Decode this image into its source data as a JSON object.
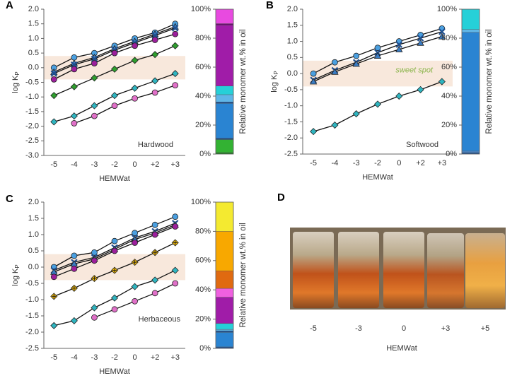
{
  "chart_data": [
    {
      "type": "line",
      "panel_label": "A",
      "annotation": "Hardwood",
      "x_label": "HEMWat",
      "y_label": "log K",
      "y_label_sub": "P",
      "categories": [
        "-5",
        "-4",
        "-3",
        "-2",
        "0",
        "+2",
        "+3"
      ],
      "ylim": [
        -3,
        2
      ],
      "yticks": [
        {
          "value": -3,
          "label": "-3.0"
        },
        {
          "value": -2.5,
          "label": "-2.5"
        },
        {
          "value": -2,
          "label": "-2.0"
        },
        {
          "value": -1.5,
          "label": "-1.5"
        },
        {
          "value": -1,
          "label": "-1.0"
        },
        {
          "value": -0.5,
          "label": "-0.5"
        },
        {
          "value": 0,
          "label": "0.0"
        },
        {
          "value": 0.5,
          "label": "0.5"
        },
        {
          "value": 1,
          "label": "1.0"
        },
        {
          "value": 1.5,
          "label": "1.5"
        },
        {
          "value": 2,
          "label": "2.0"
        }
      ],
      "shaded_range": [
        -0.4,
        0.4
      ],
      "shade_color": "#f8e8dc",
      "series": [
        {
          "marker": "circle",
          "color": "#4a9fe0",
          "values": [
            0.0,
            0.35,
            0.5,
            0.75,
            1.0,
            1.2,
            1.5
          ]
        },
        {
          "marker": "triangle",
          "color": "#3a7cc4",
          "values": [
            -0.15,
            0.15,
            0.35,
            0.65,
            0.9,
            1.15,
            1.4
          ]
        },
        {
          "marker": "x",
          "color": "#1f4f8f",
          "values": [
            -0.2,
            0.1,
            0.3,
            0.6,
            0.85,
            1.1,
            1.35
          ]
        },
        {
          "marker": "circle",
          "color": "#9c1f9c",
          "values": [
            -0.4,
            -0.05,
            0.15,
            0.5,
            0.75,
            0.95,
            1.15
          ]
        },
        {
          "marker": "diamond",
          "color": "#2e9e2e",
          "values": [
            -0.95,
            -0.65,
            -0.35,
            -0.05,
            0.25,
            0.45,
            0.75
          ]
        },
        {
          "marker": "diamond",
          "color": "#2fb5c0",
          "values": [
            -1.85,
            -1.65,
            -1.3,
            -0.95,
            -0.7,
            -0.45,
            -0.2
          ]
        },
        {
          "marker": "circle",
          "color": "#e070c8",
          "values": [
            null,
            -1.9,
            -1.65,
            -1.3,
            -1.05,
            -0.85,
            -0.6
          ]
        }
      ]
    },
    {
      "type": "stacked_bar",
      "y_label": "Relative monomer wt.% in oil",
      "ylim": [
        0,
        100
      ],
      "yticks": [
        {
          "value": 0,
          "label": "0%"
        },
        {
          "value": 20,
          "label": "20%"
        },
        {
          "value": 40,
          "label": "40%"
        },
        {
          "value": 60,
          "label": "60%"
        },
        {
          "value": 80,
          "label": "80%"
        },
        {
          "value": 100,
          "label": "100%"
        }
      ],
      "segments": [
        {
          "color": "#1b7a1b",
          "value": 1
        },
        {
          "color": "#33b233",
          "value": 9
        },
        {
          "color": "#1f4f8f",
          "value": 1
        },
        {
          "color": "#2a84d2",
          "value": 24
        },
        {
          "color": "#1f4f8f",
          "value": 1
        },
        {
          "color": "#5fb6e8",
          "value": 5
        },
        {
          "color": "#26d0d8",
          "value": 6
        },
        {
          "color": "#a01ca8",
          "value": 42
        },
        {
          "color": "#6a106e",
          "value": 1
        },
        {
          "color": "#e84ae0",
          "value": 10
        }
      ]
    },
    {
      "type": "line",
      "panel_label": "B",
      "annotation": "Softwood",
      "band_text": "sweet spot",
      "x_label": "HEMWat",
      "y_label": "log K",
      "y_label_sub": "P",
      "categories": [
        "-5",
        "-4",
        "-3",
        "-2",
        "0",
        "+2",
        "+3"
      ],
      "ylim": [
        -2.5,
        2
      ],
      "yticks": [
        {
          "value": -2.5,
          "label": "-2.5"
        },
        {
          "value": -2,
          "label": "-2.0"
        },
        {
          "value": -1.5,
          "label": "-1.5"
        },
        {
          "value": -1,
          "label": "-1.0"
        },
        {
          "value": -0.5,
          "label": "-0.5"
        },
        {
          "value": 0,
          "label": "0.0"
        },
        {
          "value": 0.5,
          "label": "0.5"
        },
        {
          "value": 1,
          "label": "1.0"
        },
        {
          "value": 1.5,
          "label": "1.5"
        },
        {
          "value": 2,
          "label": "2.0"
        }
      ],
      "shaded_range": [
        -0.4,
        0.4
      ],
      "shade_color": "#f8e8dc",
      "series": [
        {
          "marker": "circle",
          "color": "#4a9fe0",
          "values": [
            0.0,
            0.35,
            0.55,
            0.8,
            1.0,
            1.2,
            1.4
          ]
        },
        {
          "marker": "x",
          "color": "#1f4f8f",
          "values": [
            -0.2,
            0.1,
            0.35,
            0.65,
            0.9,
            1.1,
            1.3
          ]
        },
        {
          "marker": "triangle",
          "color": "#3a7cc4",
          "values": [
            -0.25,
            0.05,
            0.3,
            0.55,
            0.75,
            0.95,
            1.15
          ]
        },
        {
          "marker": "diamond",
          "color": "#2fb5c0",
          "values": [
            -1.8,
            -1.6,
            -1.25,
            -0.95,
            -0.7,
            -0.5,
            -0.25
          ]
        }
      ]
    },
    {
      "type": "stacked_bar",
      "y_label": "Relative monomer wt.% in oil",
      "ylim": [
        0,
        100
      ],
      "yticks": [
        {
          "value": 0,
          "label": "0%"
        },
        {
          "value": 20,
          "label": "20%"
        },
        {
          "value": 40,
          "label": "40%"
        },
        {
          "value": 60,
          "label": "60%"
        },
        {
          "value": 80,
          "label": "80%"
        },
        {
          "value": 100,
          "label": "100%"
        }
      ],
      "segments": [
        {
          "color": "#1f4f8f",
          "value": 1
        },
        {
          "color": "#4a8ad0",
          "value": 1
        },
        {
          "color": "#2a84d2",
          "value": 82
        },
        {
          "color": "#5fb6e8",
          "value": 2
        },
        {
          "color": "#26d0d8",
          "value": 14
        }
      ]
    },
    {
      "type": "line",
      "panel_label": "C",
      "annotation": "Herbaceous",
      "x_label": "HEMWat",
      "y_label": "log K",
      "y_label_sub": "P",
      "categories": [
        "-5",
        "-4",
        "-3",
        "-2",
        "0",
        "+2",
        "+3"
      ],
      "ylim": [
        -2.5,
        2
      ],
      "yticks": [
        {
          "value": -2.5,
          "label": "-2.5"
        },
        {
          "value": -2,
          "label": "-2.0"
        },
        {
          "value": -1.5,
          "label": "-1.5"
        },
        {
          "value": -1,
          "label": "-1.0"
        },
        {
          "value": -0.5,
          "label": "-0.5"
        },
        {
          "value": 0,
          "label": "0.0"
        },
        {
          "value": 0.5,
          "label": "0.5"
        },
        {
          "value": 1,
          "label": "1.0"
        },
        {
          "value": 1.5,
          "label": "1.5"
        },
        {
          "value": 2,
          "label": "2.0"
        }
      ],
      "shaded_range": [
        -0.4,
        0.4
      ],
      "shade_color": "#f8e8dc",
      "series": [
        {
          "marker": "circle",
          "color": "#4a9fe0",
          "values": [
            0.0,
            0.35,
            0.45,
            0.8,
            1.05,
            1.3,
            1.55
          ]
        },
        {
          "marker": "x",
          "color": "#1f4f8f",
          "values": [
            -0.1,
            0.15,
            0.3,
            0.6,
            0.9,
            1.1,
            1.35
          ]
        },
        {
          "marker": "triangle",
          "color": "#3a7cc4",
          "values": [
            -0.15,
            0.1,
            0.25,
            0.55,
            0.85,
            1.05,
            1.3
          ]
        },
        {
          "marker": "circle",
          "color": "#9c1f9c",
          "values": [
            -0.3,
            -0.05,
            0.2,
            0.5,
            0.75,
            1.0,
            1.25
          ]
        },
        {
          "marker": "diamond-plus",
          "color": "#f2b800",
          "values": [
            -0.9,
            -0.65,
            -0.35,
            -0.1,
            0.15,
            0.45,
            0.75
          ]
        },
        {
          "marker": "diamond",
          "color": "#2fb5c0",
          "values": [
            -1.8,
            -1.65,
            -1.25,
            -0.95,
            -0.6,
            -0.4,
            -0.1
          ]
        },
        {
          "marker": "circle",
          "color": "#e070c8",
          "values": [
            null,
            null,
            -1.55,
            -1.3,
            -1.05,
            -0.8,
            -0.5
          ]
        }
      ]
    },
    {
      "type": "stacked_bar",
      "y_label": "Relative monomer wt.% in oil",
      "ylim": [
        0,
        100
      ],
      "yticks": [
        {
          "value": 0,
          "label": "0%"
        },
        {
          "value": 20,
          "label": "20%"
        },
        {
          "value": 40,
          "label": "40%"
        },
        {
          "value": 60,
          "label": "60%"
        },
        {
          "value": 80,
          "label": "80%"
        },
        {
          "value": 100,
          "label": "100%"
        }
      ],
      "segments": [
        {
          "color": "#1f4f8f",
          "value": 1
        },
        {
          "color": "#2a84d2",
          "value": 10
        },
        {
          "color": "#1f4f8f",
          "value": 1
        },
        {
          "color": "#5fb6e8",
          "value": 1
        },
        {
          "color": "#26d0d8",
          "value": 4
        },
        {
          "color": "#a01ca8",
          "value": 18
        },
        {
          "color": "#f060e0",
          "value": 6
        },
        {
          "color": "#e06a10",
          "value": 12
        },
        {
          "color": "#f8a800",
          "value": 27
        },
        {
          "color": "#f4ea30",
          "value": 20
        }
      ]
    }
  ],
  "photo": {
    "panel_label": "D",
    "labels": [
      "-5",
      "-3",
      "0",
      "+3",
      "+5"
    ],
    "x_label": "HEMWat"
  }
}
